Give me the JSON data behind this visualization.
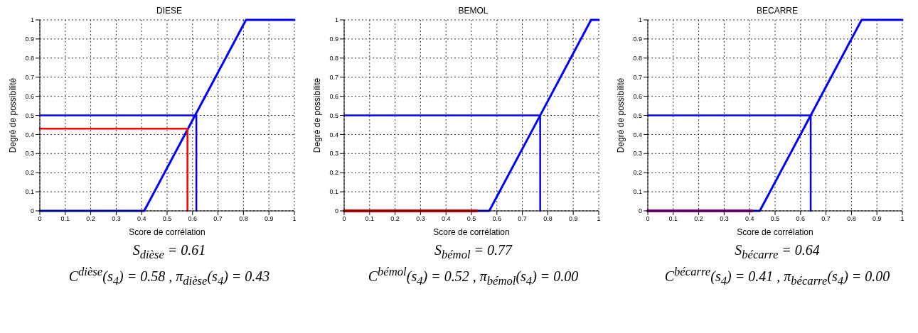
{
  "chart_data": [
    {
      "type": "line",
      "title": "DIESE",
      "xlabel": "Score de corrélation",
      "ylabel": "Degré de possibilité",
      "xlim": [
        0,
        1
      ],
      "ylim": [
        0,
        1
      ],
      "xticks": [
        0,
        0.1,
        0.2,
        0.3,
        0.4,
        0.5,
        0.6,
        0.7,
        0.8,
        0.9,
        1
      ],
      "yticks": [
        0,
        0.1,
        0.2,
        0.3,
        0.4,
        0.5,
        0.6,
        0.7,
        0.8,
        0.9,
        1
      ],
      "grid": true,
      "legend": false,
      "marker": "none",
      "line_style": "solid",
      "series": [
        {
          "color": "#0000ff",
          "x": [
            0,
            0.41,
            0.81,
            1
          ],
          "values": [
            0,
            0,
            1,
            1
          ]
        },
        {
          "color": "#0000ff",
          "x": [
            0,
            0.615,
            0.615
          ],
          "values": [
            0.5,
            0.5,
            0
          ]
        },
        {
          "color": "#ff0000",
          "x": [
            0,
            0.58,
            0.58
          ],
          "values": [
            0.43,
            0.43,
            0
          ]
        }
      ],
      "annotations": [
        "S$_{dièse}$ = 0.61",
        "C$^{dièse}$(s$_{4}$) = 0.58 ,  π$_{dièse}$(s$_{4}$) = 0.43"
      ]
    },
    {
      "type": "line",
      "title": "BEMOL",
      "xlabel": "Score de corrélation",
      "ylabel": "Degré de possibilité",
      "xlim": [
        0,
        1
      ],
      "ylim": [
        0,
        1
      ],
      "xticks": [
        0,
        0.1,
        0.2,
        0.3,
        0.4,
        0.5,
        0.6,
        0.7,
        0.8,
        0.9,
        1
      ],
      "yticks": [
        0,
        0.1,
        0.2,
        0.3,
        0.4,
        0.5,
        0.6,
        0.7,
        0.8,
        0.9,
        1
      ],
      "grid": true,
      "legend": false,
      "marker": "none",
      "line_style": "solid",
      "series": [
        {
          "color": "#0000ff",
          "x": [
            0,
            0.57,
            0.97,
            1
          ],
          "values": [
            0,
            0,
            1,
            1
          ]
        },
        {
          "color": "#0000ff",
          "x": [
            0,
            0.77,
            0.77
          ],
          "values": [
            0.5,
            0.5,
            0
          ]
        },
        {
          "color": "#ff0000",
          "x": [
            0,
            0.52
          ],
          "values": [
            0,
            0
          ]
        }
      ],
      "annotations": [
        "S$_{bémol}$ = 0.77",
        "C$^{bémol}$(s$_{4}$) = 0.52 ,  π$_{bémol}$(s$_{4}$) = 0.00"
      ]
    },
    {
      "type": "line",
      "title": "BECARRE",
      "xlabel": "Score de corrélation",
      "ylabel": "Degré de possibilité",
      "xlim": [
        0,
        1
      ],
      "ylim": [
        0,
        1
      ],
      "xticks": [
        0,
        0.1,
        0.2,
        0.3,
        0.4,
        0.5,
        0.6,
        0.7,
        0.8,
        0.9,
        1
      ],
      "yticks": [
        0,
        0.1,
        0.2,
        0.3,
        0.4,
        0.5,
        0.6,
        0.7,
        0.8,
        0.9,
        1
      ],
      "grid": true,
      "legend": false,
      "marker": "none",
      "line_style": "solid",
      "series": [
        {
          "color": "#0000ff",
          "x": [
            0,
            0.44,
            0.84,
            1
          ],
          "values": [
            0,
            0,
            1,
            1
          ]
        },
        {
          "color": "#0000ff",
          "x": [
            0,
            0.64,
            0.64
          ],
          "values": [
            0.5,
            0.5,
            0
          ]
        },
        {
          "color": "#a000a0",
          "x": [
            0,
            0.41
          ],
          "values": [
            0,
            0
          ]
        }
      ],
      "annotations": [
        "S$_{bécarre}$ = 0.64",
        "C$^{bécarre}$(s$_{4}$) = 0.41 ,  π$_{bécarre}$(s$_{4}$) = 0.00"
      ]
    }
  ]
}
